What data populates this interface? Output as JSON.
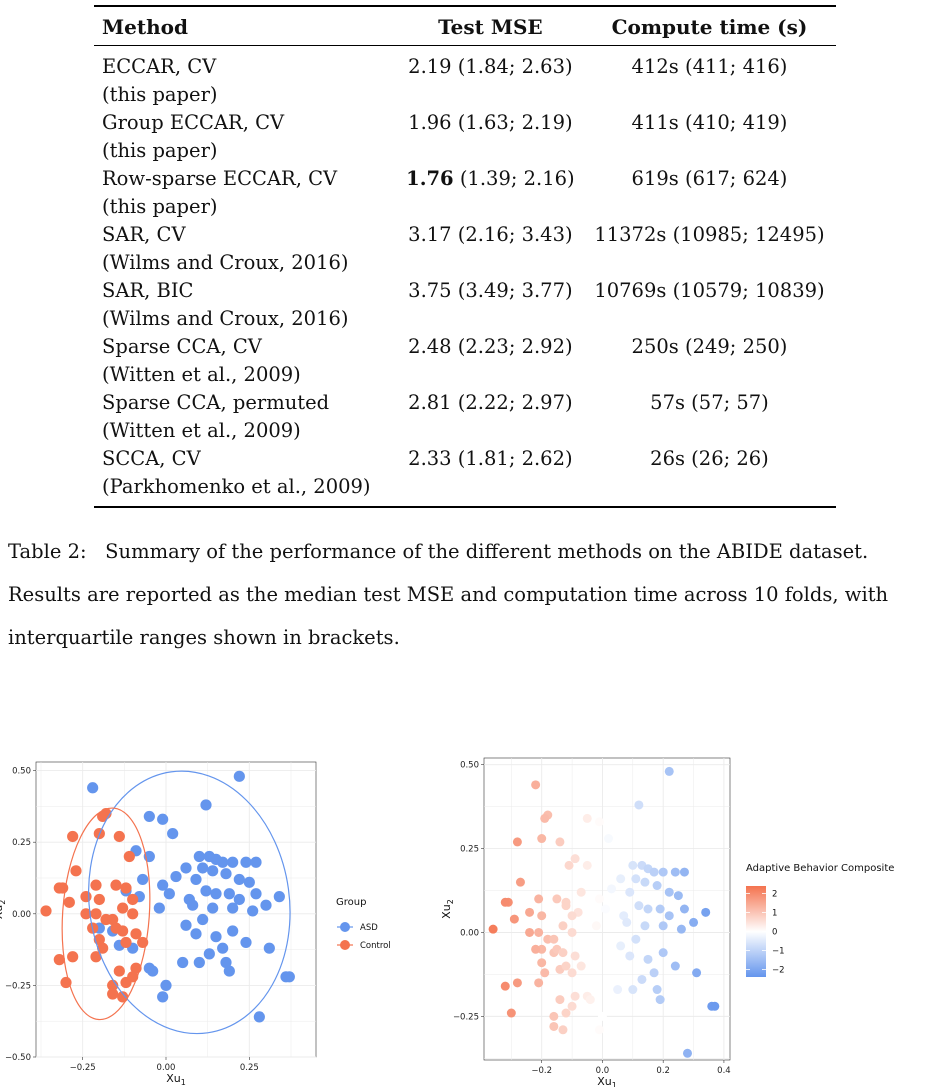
{
  "table": {
    "headers": [
      "Method",
      "Test MSE",
      "Compute time (s)"
    ],
    "rows": [
      {
        "method": "ECCAR, CV",
        "ref": "(this paper)",
        "mse_bold": "",
        "mse": "2.19 (1.84; 2.63)",
        "time": "412s (411; 416)"
      },
      {
        "method": "Group ECCAR, CV",
        "ref": "(this paper)",
        "mse_bold": "",
        "mse": "1.96 (1.63; 2.19)",
        "time": "411s (410; 419)"
      },
      {
        "method": "Row-sparse ECCAR, CV",
        "ref": "(this paper)",
        "mse_bold": "1.76",
        "mse": " (1.39; 2.16)",
        "time": "619s (617; 624)"
      },
      {
        "method": "SAR, CV",
        "ref": "(Wilms and Croux, 2016)",
        "mse_bold": "",
        "mse": "3.17 (2.16; 3.43)",
        "time": "11372s (10985; 12495)"
      },
      {
        "method": "SAR, BIC",
        "ref": "(Wilms and Croux, 2016)",
        "mse_bold": "",
        "mse": "3.75 (3.49; 3.77)",
        "time": "10769s (10579; 10839)"
      },
      {
        "method": "Sparse CCA, CV",
        "ref": "(Witten et al., 2009)",
        "mse_bold": "",
        "mse": "2.48 (2.23; 2.92)",
        "time": "250s (249; 250)"
      },
      {
        "method": "Sparse CCA, permuted",
        "ref": "(Witten et al., 2009)",
        "mse_bold": "",
        "mse": "2.81 (2.22; 2.97)",
        "time": "57s (57; 57)"
      },
      {
        "method": "SCCA, CV",
        "ref": "(Parkhomenko et al., 2009)",
        "mse_bold": "",
        "mse": "2.33 (1.81; 2.62)",
        "time": "26s (26; 26)"
      }
    ]
  },
  "caption": {
    "label": "Table 2:",
    "text": "Summary of the performance of the different methods on the ABIDE dataset. Results are reported as the median test MSE and computation time across 10 folds, with interquartile ranges shown in brackets."
  },
  "chart_data": [
    {
      "type": "scatter",
      "xlabel": "Xu1",
      "ylabel": "Xu2",
      "xlim": [
        -0.39,
        0.45
      ],
      "ylim": [
        -0.5,
        0.53
      ],
      "x_ticks": [
        "-0.25",
        "0.00",
        "0.25"
      ],
      "x_tick_values": [
        -0.25,
        0,
        0.25
      ],
      "y_ticks": [
        "-0.50",
        "-0.25",
        "0.00",
        "0.25",
        "0.50"
      ],
      "y_tick_values": [
        -0.5,
        -0.25,
        0,
        0.25,
        0.5
      ],
      "legend_title": "Group",
      "legend_placement": "right",
      "series": [
        {
          "name": "ASD",
          "color": "#6495ED",
          "points": [
            [
              -0.22,
              0.44
            ],
            [
              0.22,
              0.48
            ],
            [
              0.12,
              0.38
            ],
            [
              -0.05,
              0.34
            ],
            [
              -0.01,
              0.33
            ],
            [
              0.02,
              0.28
            ],
            [
              0.1,
              0.2
            ],
            [
              0.13,
              0.2
            ],
            [
              0.15,
              0.19
            ],
            [
              0.17,
              0.18
            ],
            [
              0.2,
              0.18
            ],
            [
              0.24,
              0.18
            ],
            [
              0.27,
              0.18
            ],
            [
              0.06,
              0.16
            ],
            [
              0.11,
              0.16
            ],
            [
              0.14,
              0.15
            ],
            [
              0.18,
              0.14
            ],
            [
              0.22,
              0.12
            ],
            [
              0.03,
              0.13
            ],
            [
              0.09,
              0.12
            ],
            [
              0.25,
              0.11
            ],
            [
              0.12,
              0.08
            ],
            [
              0.15,
              0.07
            ],
            [
              0.19,
              0.07
            ],
            [
              0.27,
              0.07
            ],
            [
              0.07,
              0.05
            ],
            [
              0.22,
              0.05
            ],
            [
              0.34,
              0.06
            ],
            [
              0.3,
              0.03
            ],
            [
              0.08,
              0.03
            ],
            [
              0.14,
              0.02
            ],
            [
              0.2,
              0.02
            ],
            [
              0.26,
              0.01
            ],
            [
              0.11,
              -0.02
            ],
            [
              0.06,
              -0.04
            ],
            [
              0.2,
              -0.06
            ],
            [
              0.09,
              -0.07
            ],
            [
              0.15,
              -0.08
            ],
            [
              0.17,
              -0.12
            ],
            [
              0.13,
              -0.14
            ],
            [
              0.24,
              -0.1
            ],
            [
              0.05,
              -0.17
            ],
            [
              0.1,
              -0.17
            ],
            [
              0.18,
              -0.17
            ],
            [
              0.19,
              -0.2
            ],
            [
              0.31,
              -0.12
            ],
            [
              0.0,
              -0.25
            ],
            [
              -0.01,
              -0.29
            ],
            [
              0.36,
              -0.22
            ],
            [
              0.37,
              -0.22
            ],
            [
              0.28,
              -0.36
            ],
            [
              -0.2,
              -0.05
            ],
            [
              -0.16,
              -0.06
            ],
            [
              -0.14,
              -0.11
            ],
            [
              -0.1,
              -0.12
            ],
            [
              -0.05,
              -0.19
            ],
            [
              -0.04,
              -0.2
            ],
            [
              -0.02,
              0.02
            ],
            [
              -0.01,
              0.1
            ],
            [
              0.01,
              0.07
            ],
            [
              -0.08,
              0.06
            ],
            [
              -0.05,
              0.2
            ],
            [
              -0.09,
              0.22
            ],
            [
              -0.12,
              0.08
            ],
            [
              -0.07,
              0.12
            ]
          ]
        },
        {
          "name": "Control",
          "color": "#F4734F",
          "points": [
            [
              -0.18,
              0.35
            ],
            [
              -0.19,
              0.34
            ],
            [
              -0.28,
              0.27
            ],
            [
              -0.2,
              0.28
            ],
            [
              -0.14,
              0.27
            ],
            [
              -0.11,
              0.2
            ],
            [
              -0.27,
              0.15
            ],
            [
              -0.31,
              0.09
            ],
            [
              -0.32,
              0.09
            ],
            [
              -0.21,
              0.1
            ],
            [
              -0.15,
              0.1
            ],
            [
              -0.12,
              0.09
            ],
            [
              -0.24,
              0.06
            ],
            [
              -0.2,
              0.05
            ],
            [
              -0.1,
              0.05
            ],
            [
              -0.36,
              0.01
            ],
            [
              -0.29,
              0.04
            ],
            [
              -0.13,
              0.02
            ],
            [
              -0.24,
              0.0
            ],
            [
              -0.21,
              0.0
            ],
            [
              -0.18,
              -0.02
            ],
            [
              -0.16,
              -0.02
            ],
            [
              -0.1,
              0.0
            ],
            [
              -0.15,
              -0.05
            ],
            [
              -0.22,
              -0.05
            ],
            [
              -0.13,
              -0.06
            ],
            [
              -0.09,
              -0.07
            ],
            [
              -0.2,
              -0.09
            ],
            [
              -0.07,
              -0.1
            ],
            [
              -0.12,
              -0.1
            ],
            [
              -0.32,
              -0.16
            ],
            [
              -0.28,
              -0.15
            ],
            [
              -0.21,
              -0.15
            ],
            [
              -0.19,
              -0.12
            ],
            [
              -0.09,
              -0.19
            ],
            [
              -0.14,
              -0.2
            ],
            [
              -0.1,
              -0.22
            ],
            [
              -0.3,
              -0.24
            ],
            [
              -0.16,
              -0.25
            ],
            [
              -0.12,
              -0.24
            ],
            [
              -0.16,
              -0.28
            ],
            [
              -0.13,
              -0.29
            ]
          ]
        }
      ],
      "ellipses": [
        {
          "name": "ASD",
          "color": "#6495ED",
          "center": [
            0.07,
            0.04
          ],
          "rx": 0.3,
          "ry": 0.46,
          "angle": -8
        },
        {
          "name": "Control",
          "color": "#F4734F",
          "center": [
            -0.18,
            0.0
          ],
          "rx": 0.13,
          "ry": 0.37,
          "angle": 4
        }
      ]
    },
    {
      "type": "scatter",
      "xlabel": "Xu1",
      "ylabel": "Xu2",
      "xlim": [
        -0.39,
        0.42
      ],
      "ylim": [
        -0.38,
        0.52
      ],
      "x_ticks": [
        "-0.2",
        "0.0",
        "0.2",
        "0.4"
      ],
      "x_tick_values": [
        -0.2,
        0,
        0.2,
        0.4
      ],
      "y_ticks": [
        "-0.25",
        "0.00",
        "0.25",
        "0.50"
      ],
      "y_tick_values": [
        -0.25,
        0,
        0.25,
        0.5
      ],
      "legend_title": "Adaptive Behavior Composite",
      "legend_placement": "right",
      "colorbar_ticks": [
        "2",
        "1",
        "0",
        "−1",
        "−2"
      ],
      "colorbar_tick_values": [
        2,
        1,
        0,
        -1,
        -2
      ],
      "colorbar_range": [
        -2.4,
        2.4
      ],
      "color_high": "#F4734F",
      "color_mid": "#FFFFFF",
      "color_low": "#6495ED"
    }
  ]
}
